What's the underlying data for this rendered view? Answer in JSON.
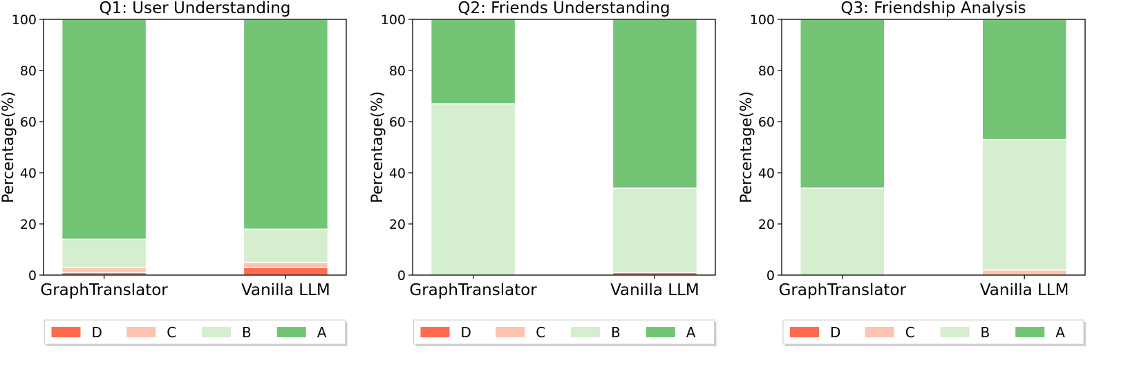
{
  "chart_data": [
    {
      "type": "bar",
      "stacked": true,
      "title": "Q1: User Understanding",
      "xlabel": "",
      "ylabel": "Percentage(%)",
      "ylim": [
        0,
        100
      ],
      "yticks": [
        "0",
        "20",
        "40",
        "60",
        "80",
        "100"
      ],
      "categories": [
        "GraphTranslator",
        "Vanilla LLM"
      ],
      "series": [
        {
          "name": "D",
          "color": "#fe6b4f",
          "values": [
            1,
            3
          ]
        },
        {
          "name": "C",
          "color": "#fdc5b0",
          "values": [
            2,
            2
          ]
        },
        {
          "name": "B",
          "color": "#d4eece",
          "values": [
            11,
            13
          ]
        },
        {
          "name": "A",
          "color": "#74c476",
          "values": [
            86,
            82
          ]
        }
      ],
      "legend": "bottom",
      "grid": false
    },
    {
      "type": "bar",
      "stacked": true,
      "title": "Q2: Friends Understanding",
      "xlabel": "",
      "ylabel": "Percentage(%)",
      "ylim": [
        0,
        100
      ],
      "yticks": [
        "0",
        "20",
        "40",
        "60",
        "80",
        "100"
      ],
      "categories": [
        "GraphTranslator",
        "Vanilla LLM"
      ],
      "series": [
        {
          "name": "D",
          "color": "#fe6b4f",
          "values": [
            0,
            1
          ]
        },
        {
          "name": "C",
          "color": "#fdc5b0",
          "values": [
            0,
            0
          ]
        },
        {
          "name": "B",
          "color": "#d4eece",
          "values": [
            67,
            33
          ]
        },
        {
          "name": "A",
          "color": "#74c476",
          "values": [
            33,
            66
          ]
        }
      ],
      "legend": "bottom",
      "grid": false
    },
    {
      "type": "bar",
      "stacked": true,
      "title": "Q3: Friendship Analysis",
      "xlabel": "",
      "ylabel": "Percentage(%)",
      "ylim": [
        0,
        100
      ],
      "yticks": [
        "0",
        "20",
        "40",
        "60",
        "80",
        "100"
      ],
      "categories": [
        "GraphTranslator",
        "Vanilla LLM"
      ],
      "series": [
        {
          "name": "D",
          "color": "#fe6b4f",
          "values": [
            0,
            0
          ]
        },
        {
          "name": "C",
          "color": "#fdc5b0",
          "values": [
            0,
            2
          ]
        },
        {
          "name": "B",
          "color": "#d4eece",
          "values": [
            34,
            51
          ]
        },
        {
          "name": "A",
          "color": "#74c476",
          "values": [
            66,
            47
          ]
        }
      ],
      "legend": "bottom",
      "grid": false
    }
  ]
}
